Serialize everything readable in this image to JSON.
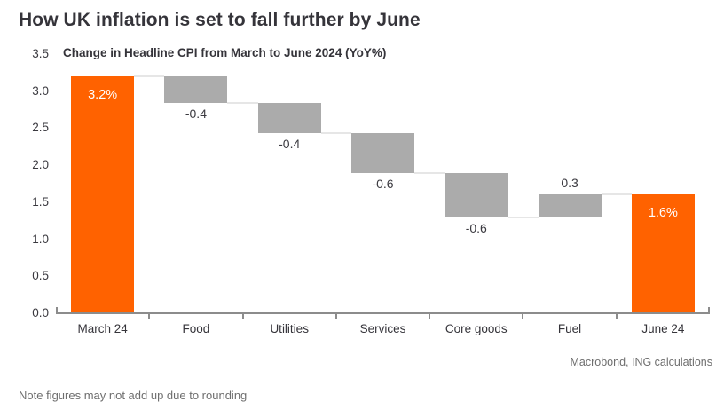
{
  "header": {
    "title": "How UK inflation is set to fall further by June"
  },
  "chart_data": {
    "type": "bar",
    "subtype": "waterfall",
    "title": "Change in Headline CPI from March to June 2024 (YoY%)",
    "categories": [
      "March 24",
      "Food",
      "Utilities",
      "Services",
      "Core goods",
      "Fuel",
      "June 24"
    ],
    "bars": [
      {
        "category": "March 24",
        "kind": "total",
        "start": 0,
        "end": 3.2,
        "label": "3.2%",
        "label_position": "inside-top",
        "color": "orange"
      },
      {
        "category": "Food",
        "kind": "decrease",
        "start": 3.2,
        "end": 2.84,
        "label": "-0.4",
        "label_position": "below",
        "color": "gray"
      },
      {
        "category": "Utilities",
        "kind": "decrease",
        "start": 2.84,
        "end": 2.43,
        "label": "-0.4",
        "label_position": "below",
        "color": "gray"
      },
      {
        "category": "Services",
        "kind": "decrease",
        "start": 2.43,
        "end": 1.89,
        "label": "-0.6",
        "label_position": "below",
        "color": "gray"
      },
      {
        "category": "Core goods",
        "kind": "decrease",
        "start": 1.89,
        "end": 1.3,
        "label": "-0.6",
        "label_position": "below",
        "color": "gray"
      },
      {
        "category": "Fuel",
        "kind": "increase",
        "start": 1.3,
        "end": 1.61,
        "label": "0.3",
        "label_position": "above",
        "color": "gray"
      },
      {
        "category": "June 24",
        "kind": "total",
        "start": 0,
        "end": 1.61,
        "label": "1.6%",
        "label_position": "inside-top",
        "color": "orange"
      }
    ],
    "xlabel": "",
    "ylabel": "",
    "ylim": [
      0,
      3.5
    ],
    "ytick_step": 0.5,
    "yticks": [
      "0.0",
      "0.5",
      "1.0",
      "1.5",
      "2.0",
      "2.5",
      "3.0",
      "3.5"
    ],
    "grid": false,
    "legend": "none",
    "colors": {
      "total": "#FF6200",
      "change": "#ABABAB",
      "connector": "#E6E6E6",
      "axis": "#8C8C8C"
    }
  },
  "footer": {
    "source": "Macrobond, ING calculations",
    "note": "Note figures may not add up due to rounding"
  }
}
